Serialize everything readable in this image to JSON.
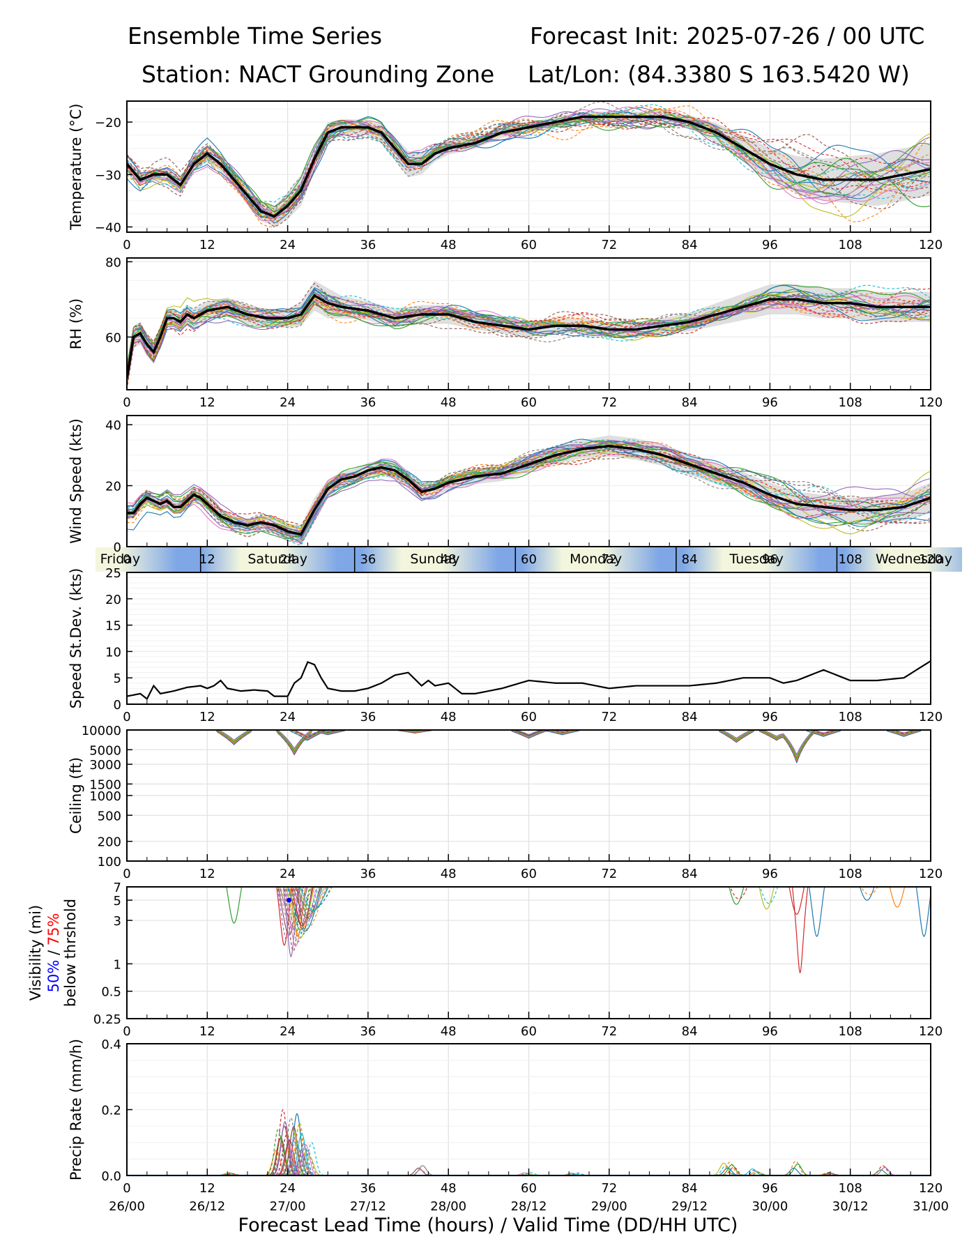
{
  "header": {
    "title_left": "Ensemble Time Series",
    "title_right": "Forecast Init: 2025-07-26 / 00 UTC",
    "station": "Station: NACT Grounding Zone",
    "latlon": "Lat/Lon: (84.3380 S 163.5420 W)"
  },
  "colors": {
    "mean": "#000000",
    "spread": "#d9d9d9",
    "members": [
      "#1f77b4",
      "#ff7f0e",
      "#2ca02c",
      "#d62728",
      "#9467bd",
      "#8c564b",
      "#e377c2",
      "#7f7f7f",
      "#bcbd22",
      "#17becf"
    ],
    "band_sky": "#7fa7e6",
    "band_sun": "#f3f6dd",
    "vis_50": "#0000ff",
    "vis_75": "#ff0000"
  },
  "days": [
    "Friday",
    "Saturday",
    "Sunday",
    "Monday",
    "Tuesday",
    "Wednesday"
  ],
  "xaxis": {
    "ticks": [
      0,
      12,
      24,
      36,
      48,
      60,
      72,
      84,
      96,
      108,
      120
    ],
    "valid_labels": [
      "26/00",
      "26/12",
      "27/00",
      "27/12",
      "28/00",
      "28/12",
      "29/00",
      "29/12",
      "30/00",
      "30/12",
      "31/00"
    ],
    "xlabel": "Forecast Lead Time (hours) / Valid Time (DD/HH UTC)"
  },
  "chart_data": [
    {
      "id": "temp",
      "type": "line",
      "ylabel": "Temperature (°C)",
      "ylim": [
        -41,
        -16
      ],
      "yticks": [
        -40,
        -30,
        -20
      ],
      "ytick_labels": [
        "−40",
        "−30",
        "−20"
      ],
      "mean": {
        "x": [
          0,
          2,
          4,
          6,
          8,
          10,
          12,
          14,
          16,
          18,
          20,
          22,
          24,
          26,
          28,
          30,
          32,
          34,
          36,
          38,
          40,
          42,
          44,
          46,
          48,
          52,
          56,
          60,
          64,
          68,
          72,
          76,
          80,
          84,
          88,
          92,
          96,
          100,
          104,
          108,
          112,
          116,
          120
        ],
        "y": [
          -28,
          -31,
          -30,
          -30,
          -32,
          -28,
          -26,
          -28,
          -31,
          -34,
          -37,
          -38,
          -36,
          -33,
          -27,
          -22,
          -21,
          -21,
          -21,
          -22,
          -25,
          -28,
          -28,
          -26,
          -25,
          -24,
          -22,
          -21,
          -20,
          -19,
          -19,
          -19,
          -19,
          -20,
          -22,
          -25,
          -28,
          -30,
          -31,
          -31,
          -31,
          -30,
          -29
        ]
      },
      "spread": [
        1.0,
        1.2,
        1.2,
        1.2,
        1.3,
        1.5,
        1.5,
        1.5,
        1.5,
        1.6,
        1.8,
        2.0,
        2.5,
        3.0,
        2.5,
        2.0,
        1.5,
        1.5,
        1.5,
        1.8,
        2.2,
        2.5,
        2.0,
        1.5,
        1.2,
        1.0,
        1.0,
        1.0,
        1.0,
        1.0,
        1.0,
        1.0,
        1.0,
        1.3,
        1.8,
        2.5,
        3.0,
        3.5,
        4.0,
        4.5,
        5.0,
        5.0,
        5.0
      ],
      "members": 26,
      "amp": 1.6,
      "amp_late": 4.5,
      "late_x": 90
    },
    {
      "id": "rh",
      "type": "line",
      "ylabel": "RH (%)",
      "ylim": [
        46,
        81
      ],
      "yticks": [
        60,
        80
      ],
      "ytick_labels": [
        "60",
        "80"
      ],
      "mean": {
        "x": [
          0,
          1,
          2,
          3,
          4,
          5,
          6,
          7,
          8,
          9,
          10,
          11,
          12,
          15,
          18,
          21,
          24,
          26,
          28,
          30,
          32,
          36,
          40,
          44,
          48,
          52,
          56,
          60,
          64,
          68,
          72,
          76,
          80,
          84,
          88,
          92,
          96,
          100,
          104,
          108,
          112,
          116,
          120
        ],
        "y": [
          49,
          60,
          61,
          58,
          56,
          60,
          65,
          65,
          64,
          66,
          65,
          66,
          67,
          68,
          66,
          65,
          65,
          66,
          71,
          69,
          68,
          67,
          65,
          66,
          66,
          64,
          63,
          62,
          63,
          63,
          62,
          62,
          63,
          64,
          66,
          68,
          70,
          70,
          69,
          69,
          68,
          68,
          68
        ]
      },
      "spread": [
        2,
        3,
        3,
        3,
        3,
        3,
        2.5,
        2.5,
        2.5,
        2.5,
        2.5,
        2.5,
        2.5,
        2.5,
        2.5,
        2.5,
        2.5,
        3,
        4,
        4,
        3,
        2.5,
        2.5,
        2.5,
        2.5,
        2,
        2,
        2,
        2,
        2,
        2,
        2,
        2,
        2.5,
        3,
        3.5,
        4,
        4,
        4,
        4,
        4,
        4,
        4
      ],
      "members": 26,
      "amp": 2.2,
      "amp_late": 3.5,
      "late_x": 88
    },
    {
      "id": "wind",
      "type": "line",
      "ylabel": "Wind Speed (kts)",
      "ylim": [
        0,
        43
      ],
      "yticks": [
        0,
        20,
        40
      ],
      "ytick_labels": [
        "0",
        "20",
        "40"
      ],
      "mean": {
        "x": [
          0,
          1,
          2,
          3,
          4,
          5,
          6,
          7,
          8,
          9,
          10,
          11,
          12,
          14,
          16,
          18,
          20,
          22,
          24,
          26,
          28,
          30,
          32,
          34,
          36,
          38,
          40,
          42,
          44,
          46,
          48,
          52,
          56,
          60,
          64,
          68,
          72,
          76,
          80,
          84,
          88,
          92,
          96,
          100,
          104,
          108,
          112,
          116,
          120
        ],
        "y": [
          11,
          11,
          14,
          16,
          15,
          14,
          15,
          13,
          13,
          15,
          17,
          16,
          14,
          10,
          8,
          7,
          8,
          7,
          5,
          4,
          12,
          19,
          22,
          23,
          25,
          26,
          25,
          22,
          18,
          19,
          21,
          23,
          24,
          27,
          30,
          32,
          33,
          32,
          30,
          27,
          24,
          21,
          17,
          14,
          13,
          12,
          12,
          13,
          16
        ]
      },
      "spread": [
        1.5,
        1.5,
        1.5,
        1.5,
        1.5,
        1.5,
        1.5,
        1.5,
        1.5,
        1.8,
        2,
        2,
        2,
        2.2,
        2.2,
        2.2,
        2.2,
        2.2,
        2.5,
        3,
        4,
        3,
        2.5,
        2.5,
        2.5,
        2.5,
        3,
        3,
        3,
        2.5,
        2.5,
        2.5,
        2.5,
        2.5,
        3,
        3,
        3.5,
        3.5,
        3.5,
        3.5,
        3.5,
        3.5,
        4,
        4,
        4,
        4,
        4.5,
        4.5,
        5
      ],
      "members": 26,
      "amp": 2.6,
      "amp_late": 5.0,
      "late_x": 90
    },
    {
      "id": "sdev",
      "type": "line",
      "ylabel": "Speed St.Dev. (kts)",
      "ylim": [
        0,
        25
      ],
      "yticks": [
        0,
        5,
        10,
        15,
        20,
        25
      ],
      "ytick_labels": [
        "0",
        "5",
        "10",
        "15",
        "20",
        "25"
      ],
      "mean": {
        "x": [
          0,
          2,
          3,
          4,
          5,
          7,
          9,
          11,
          12,
          13,
          14,
          15,
          17,
          19,
          21,
          22,
          23,
          24,
          25,
          26,
          27,
          28,
          29,
          30,
          32,
          34,
          36,
          38,
          40,
          42,
          44,
          45,
          46,
          48,
          50,
          52,
          56,
          60,
          64,
          68,
          72,
          76,
          80,
          84,
          88,
          92,
          96,
          97,
          98,
          100,
          102,
          104,
          108,
          112,
          116,
          120
        ],
        "y": [
          1.5,
          2,
          1,
          3.5,
          2,
          2.5,
          3.2,
          3.5,
          3,
          3.5,
          4.5,
          3,
          2.5,
          2.7,
          2.5,
          1.5,
          1.5,
          1.5,
          4,
          5,
          8,
          7.5,
          5,
          3,
          2.5,
          2.5,
          3,
          4,
          5.5,
          6,
          3.5,
          4.5,
          3.5,
          4,
          2,
          2,
          3,
          4.5,
          4,
          4,
          3,
          3.5,
          3.5,
          3.5,
          4,
          5,
          5,
          4.5,
          4,
          4.5,
          5.5,
          6.5,
          4.5,
          4.5,
          5,
          8.2
        ]
      },
      "members": 0
    },
    {
      "id": "ceil",
      "type": "line",
      "ylabel": "Ceiling (ft)",
      "scale": "log",
      "ylim": [
        100,
        10000
      ],
      "yticks": [
        100,
        200,
        500,
        1000,
        1500,
        3000,
        5000,
        10000
      ],
      "ytick_labels": [
        "100",
        "200",
        "500",
        "1000",
        "1500",
        "3000",
        "5000",
        "10000"
      ],
      "members": 26
    },
    {
      "id": "vis",
      "type": "line",
      "ylabel": "Visibility (mi)",
      "ylabel2": "below thrshold",
      "vis_50": "50%",
      "vis_sep": " / ",
      "vis_75": "75%",
      "scale": "log",
      "ylim": [
        0.25,
        7
      ],
      "yticks": [
        0.25,
        0.5,
        1,
        3,
        5,
        7
      ],
      "ytick_labels": [
        "0.25",
        "0.5",
        "1",
        "3",
        "5",
        "7"
      ],
      "members": 26,
      "marker_50": {
        "x": 24.2,
        "y": 5.0
      }
    },
    {
      "id": "precip",
      "type": "line",
      "ylabel": "Precip Rate (mm/h)",
      "ylim": [
        0,
        0.4
      ],
      "yticks": [
        0,
        0.2,
        0.4
      ],
      "ytick_labels": [
        "0.0",
        "0.2",
        "0.4"
      ],
      "members": 26
    }
  ]
}
